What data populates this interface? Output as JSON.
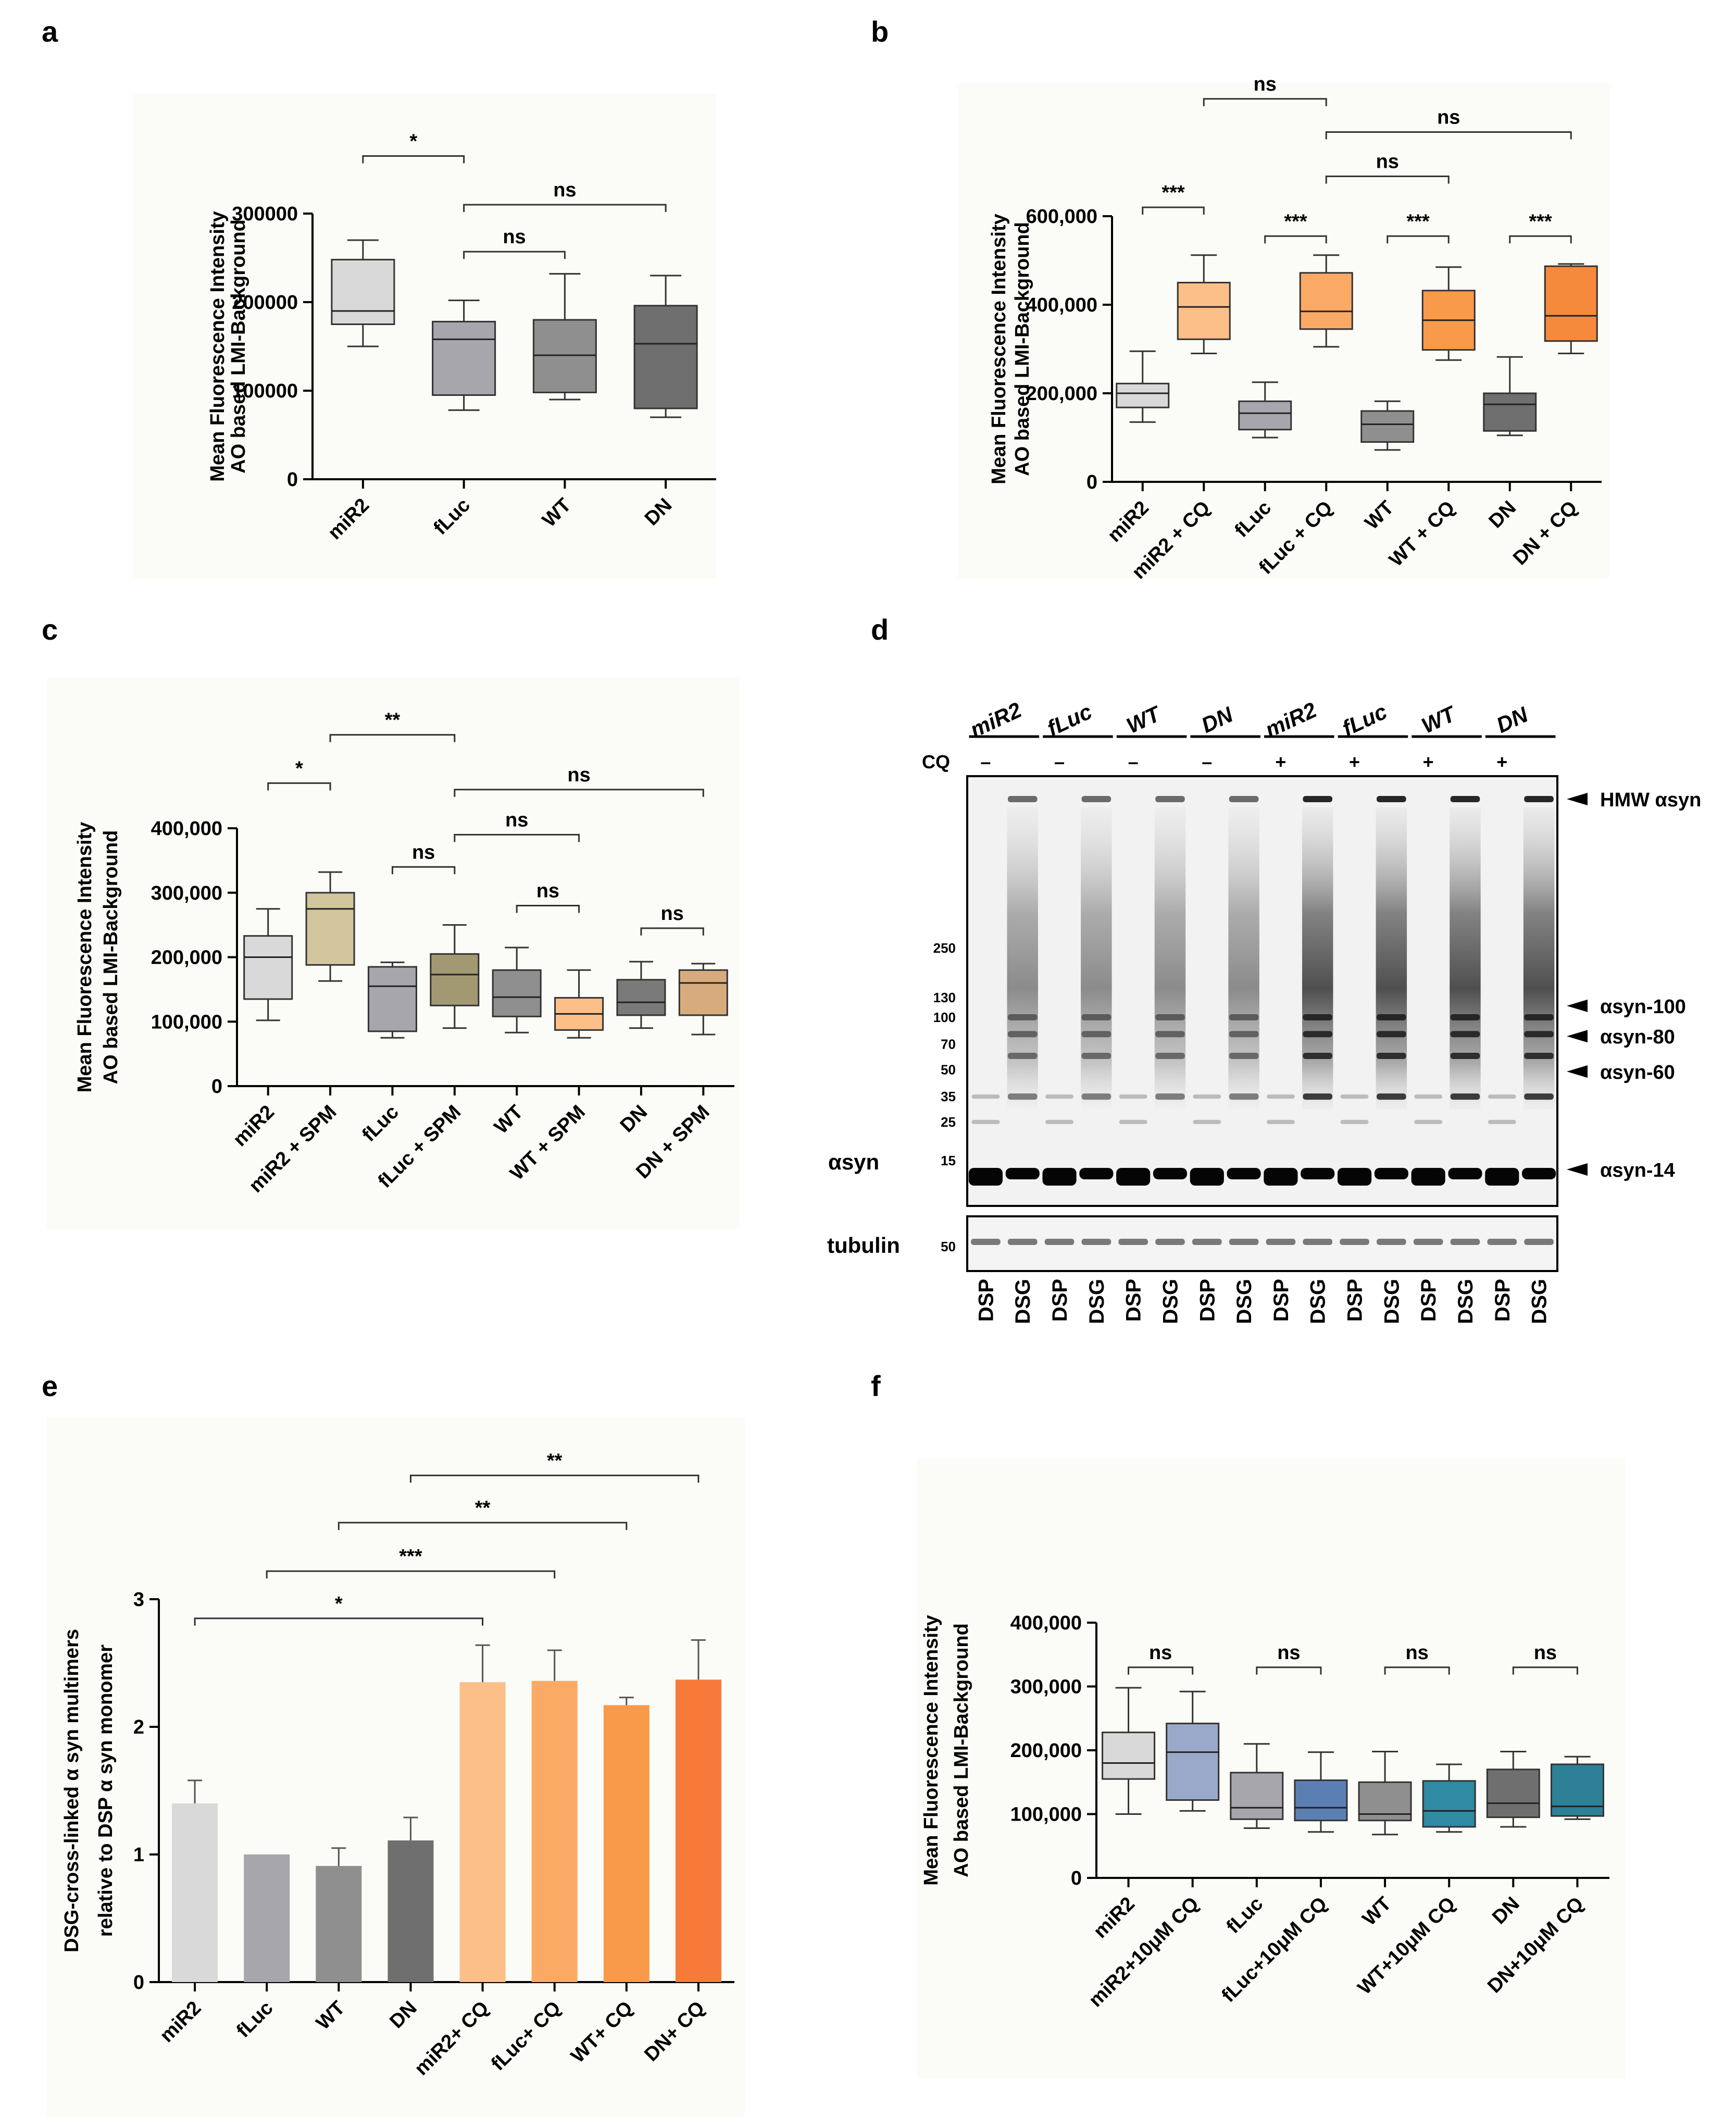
{
  "panel_labels": {
    "a": "a",
    "b": "b",
    "c": "c",
    "d": "d",
    "e": "e",
    "f": "f"
  },
  "chart_data": [
    {
      "panel": "a",
      "type": "box",
      "ylabel_line1": "Mean Fluorescence Intensity",
      "ylabel_line2": "AO based LMI-Background",
      "ylim": [
        0,
        300000
      ],
      "yticks": [
        0,
        100000,
        200000,
        300000
      ],
      "ytick_labels": [
        "0",
        "100000",
        "200000",
        "300000"
      ],
      "categories": [
        "miR2",
        "fLuc",
        "WT",
        "DN"
      ],
      "colors": [
        "#d9d9d9",
        "#a6a6ac",
        "#8f8f8f",
        "#6f6f6f"
      ],
      "boxes": [
        {
          "min": 150000,
          "q1": 175000,
          "median": 190000,
          "q3": 248000,
          "max": 270000
        },
        {
          "min": 78000,
          "q1": 95000,
          "median": 158000,
          "q3": 178000,
          "max": 202000
        },
        {
          "min": 90000,
          "q1": 98000,
          "median": 140000,
          "q3": 180000,
          "max": 232000
        },
        {
          "min": 70000,
          "q1": 80000,
          "median": 153000,
          "q3": 196000,
          "max": 230000
        }
      ],
      "significance": [
        {
          "from": 0,
          "to": 1,
          "label": "*",
          "y": 365000
        },
        {
          "from": 1,
          "to": 3,
          "label": "ns",
          "y": 310000
        },
        {
          "from": 1,
          "to": 2,
          "label": "ns",
          "y": 257000
        }
      ]
    },
    {
      "panel": "b",
      "type": "box",
      "ylabel_line1": "Mean Fluorescence Intensity",
      "ylabel_line2": "AO based LMI-Background",
      "ylim": [
        0,
        600000
      ],
      "yticks": [
        0,
        200000,
        400000,
        600000
      ],
      "ytick_labels": [
        "0",
        "200,000",
        "400,000",
        "600,000"
      ],
      "categories": [
        "miR2",
        "miR2 + CQ",
        "fLuc",
        "fLuc + CQ",
        "WT",
        "WT + CQ",
        "DN",
        "DN + CQ"
      ],
      "colors": [
        "#d9d9d9",
        "#fbbf87",
        "#a6a6ac",
        "#fbaa66",
        "#8f8f8f",
        "#f99a4b",
        "#6f6f6f",
        "#f58a3c"
      ],
      "boxes": [
        {
          "min": 135000,
          "q1": 168000,
          "median": 200000,
          "q3": 222000,
          "max": 295000
        },
        {
          "min": 290000,
          "q1": 322000,
          "median": 395000,
          "q3": 450000,
          "max": 512000
        },
        {
          "min": 100000,
          "q1": 118000,
          "median": 155000,
          "q3": 182000,
          "max": 225000
        },
        {
          "min": 305000,
          "q1": 345000,
          "median": 385000,
          "q3": 472000,
          "max": 512000
        },
        {
          "min": 72000,
          "q1": 90000,
          "median": 130000,
          "q3": 160000,
          "max": 182000
        },
        {
          "min": 275000,
          "q1": 298000,
          "median": 365000,
          "q3": 432000,
          "max": 485000
        },
        {
          "min": 105000,
          "q1": 115000,
          "median": 175000,
          "q3": 200000,
          "max": 282000
        },
        {
          "min": 290000,
          "q1": 318000,
          "median": 375000,
          "q3": 487000,
          "max": 492000
        }
      ],
      "significance": [
        {
          "from": 0,
          "to": 1,
          "label": "***",
          "y": 620000
        },
        {
          "from": 2,
          "to": 3,
          "label": "***",
          "y": 555000
        },
        {
          "from": 4,
          "to": 5,
          "label": "***",
          "y": 555000
        },
        {
          "from": 6,
          "to": 7,
          "label": "***",
          "y": 555000
        },
        {
          "from": 3,
          "to": 5,
          "label": "ns",
          "y": 690000
        },
        {
          "from": 3,
          "to": 7,
          "label": "ns",
          "y": 790000
        },
        {
          "from": 1,
          "to": 3,
          "label": "ns",
          "y": 865000
        }
      ]
    },
    {
      "panel": "c",
      "type": "box",
      "ylabel_line1": "Mean Fluorescence Intensity",
      "ylabel_line2": "AO based LMI-Background",
      "ylim": [
        0,
        400000
      ],
      "yticks": [
        0,
        100000,
        200000,
        300000,
        400000
      ],
      "ytick_labels": [
        "0",
        "100,000",
        "200,000",
        "300,000",
        "400,000"
      ],
      "categories": [
        "miR2",
        "miR2 + SPM",
        "fLuc",
        "fLuc + SPM",
        "WT",
        "WT + SPM",
        "DN",
        "DN + SPM"
      ],
      "colors": [
        "#d9d9d9",
        "#d3c59c",
        "#a6a6ac",
        "#a29872",
        "#8f8f8f",
        "#fbbf87",
        "#7a7a7a",
        "#d8ab7e"
      ],
      "boxes": [
        {
          "min": 102000,
          "q1": 135000,
          "median": 200000,
          "q3": 233000,
          "max": 275000
        },
        {
          "min": 163000,
          "q1": 188000,
          "median": 275000,
          "q3": 300000,
          "max": 332000
        },
        {
          "min": 75000,
          "q1": 85000,
          "median": 155000,
          "q3": 185000,
          "max": 192000
        },
        {
          "min": 90000,
          "q1": 125000,
          "median": 173000,
          "q3": 205000,
          "max": 250000
        },
        {
          "min": 83000,
          "q1": 108000,
          "median": 138000,
          "q3": 180000,
          "max": 215000
        },
        {
          "min": 75000,
          "q1": 87000,
          "median": 112000,
          "q3": 137000,
          "max": 180000
        },
        {
          "min": 90000,
          "q1": 110000,
          "median": 130000,
          "q3": 165000,
          "max": 193000
        },
        {
          "min": 80000,
          "q1": 110000,
          "median": 160000,
          "q3": 180000,
          "max": 190000
        }
      ],
      "significance": [
        {
          "from": 0,
          "to": 1,
          "label": "*",
          "y": 470000
        },
        {
          "from": 1,
          "to": 3,
          "label": "**",
          "y": 545000
        },
        {
          "from": 3,
          "to": 7,
          "label": "ns",
          "y": 460000
        },
        {
          "from": 3,
          "to": 5,
          "label": "ns",
          "y": 390000
        },
        {
          "from": 2,
          "to": 3,
          "label": "ns",
          "y": 340000
        },
        {
          "from": 4,
          "to": 5,
          "label": "ns",
          "y": 280000
        },
        {
          "from": 6,
          "to": 7,
          "label": "ns",
          "y": 245000
        }
      ]
    },
    {
      "panel": "e",
      "type": "bar",
      "ylabel_line1": "DSG-cross-linked α syn multimers",
      "ylabel_line2": "relative to DSP α syn monomer",
      "ylim": [
        0,
        3
      ],
      "yticks": [
        0,
        1,
        2,
        3
      ],
      "ytick_labels": [
        "0",
        "1",
        "2",
        "3"
      ],
      "categories": [
        "miR2",
        "fLuc",
        "WT",
        "DN",
        "miR2+ CQ",
        "fLuc+ CQ",
        "WT+ CQ",
        "DN+ CQ"
      ],
      "values": [
        1.4,
        1.0,
        0.91,
        1.11,
        2.35,
        2.36,
        2.17,
        2.37
      ],
      "errors": [
        0.18,
        0.0,
        0.14,
        0.18,
        0.29,
        0.24,
        0.06,
        0.31
      ],
      "colors": [
        "#d9d9d9",
        "#a6a6ac",
        "#8f8f8f",
        "#6f6f6f",
        "#fbbf87",
        "#fbaa66",
        "#f99a4b",
        "#f87a3a"
      ],
      "significance": [
        {
          "from": 0,
          "to": 4,
          "label": "*",
          "y": 2.85
        },
        {
          "from": 1,
          "to": 5,
          "label": "***",
          "y": 3.22
        },
        {
          "from": 2,
          "to": 6,
          "label": "**",
          "y": 3.6
        },
        {
          "from": 3,
          "to": 7,
          "label": "**",
          "y": 3.97
        }
      ]
    },
    {
      "panel": "f",
      "type": "box",
      "ylabel_line1": "Mean Fluorescence Intensity",
      "ylabel_line2": "AO based LMI-Background",
      "ylim": [
        0,
        400000
      ],
      "yticks": [
        0,
        100000,
        200000,
        300000,
        400000
      ],
      "ytick_labels": [
        "0",
        "100,000",
        "200,000",
        "300,000",
        "400,000"
      ],
      "categories": [
        "miR2",
        "miR2+10μM CQ",
        "fLuc",
        "fLuc+10μM CQ",
        "WT",
        "WT+10μM CQ",
        "DN",
        "DN+10μM CQ"
      ],
      "colors": [
        "#d9d9d9",
        "#9aa9c9",
        "#a6a6ac",
        "#5c7fb3",
        "#8f8f8f",
        "#2f8aa3",
        "#6f6f6f",
        "#2d8098"
      ],
      "boxes": [
        {
          "min": 100000,
          "q1": 155000,
          "median": 180000,
          "q3": 228000,
          "max": 298000
        },
        {
          "min": 105000,
          "q1": 122000,
          "median": 197000,
          "q3": 242000,
          "max": 292000
        },
        {
          "min": 78000,
          "q1": 92000,
          "median": 110000,
          "q3": 165000,
          "max": 210000
        },
        {
          "min": 72000,
          "q1": 90000,
          "median": 110000,
          "q3": 153000,
          "max": 197000
        },
        {
          "min": 68000,
          "q1": 90000,
          "median": 100000,
          "q3": 150000,
          "max": 198000
        },
        {
          "min": 72000,
          "q1": 80000,
          "median": 105000,
          "q3": 152000,
          "max": 178000
        },
        {
          "min": 80000,
          "q1": 95000,
          "median": 117000,
          "q3": 170000,
          "max": 198000
        },
        {
          "min": 92000,
          "q1": 97000,
          "median": 112000,
          "q3": 178000,
          "max": 190000
        }
      ],
      "significance": [
        {
          "from": 0,
          "to": 1,
          "label": "ns",
          "y": 330000
        },
        {
          "from": 2,
          "to": 3,
          "label": "ns",
          "y": 330000
        },
        {
          "from": 4,
          "to": 5,
          "label": "ns",
          "y": 330000
        },
        {
          "from": 6,
          "to": 7,
          "label": "ns",
          "y": 330000
        }
      ]
    }
  ],
  "western_blot": {
    "lane_groups": [
      "miR2",
      "fLuc",
      "WT",
      "DN",
      "miR2",
      "fLuc",
      "WT",
      "DN"
    ],
    "cq_label": "CQ",
    "cq_marks": [
      "–",
      "–",
      "–",
      "–",
      "+",
      "+",
      "+",
      "+"
    ],
    "lanes": [
      "DSP",
      "DSG",
      "DSP",
      "DSG",
      "DSP",
      "DSG",
      "DSP",
      "DSG",
      "DSP",
      "DSG",
      "DSP",
      "DSG",
      "DSP",
      "DSG",
      "DSP",
      "DSG"
    ],
    "mw_markers": [
      "250",
      "130",
      "100",
      "70",
      "50",
      "35",
      "25",
      "15"
    ],
    "mw_values": [
      250,
      130,
      100,
      70,
      50,
      35,
      25,
      15
    ],
    "right_labels": [
      "HMW αsyn",
      "αsyn-100",
      "αsyn-80",
      "αsyn-60",
      "αsyn-14"
    ],
    "left_label": "αsyn",
    "tubulin_label": "tubulin",
    "tubulin_marker": "50"
  }
}
